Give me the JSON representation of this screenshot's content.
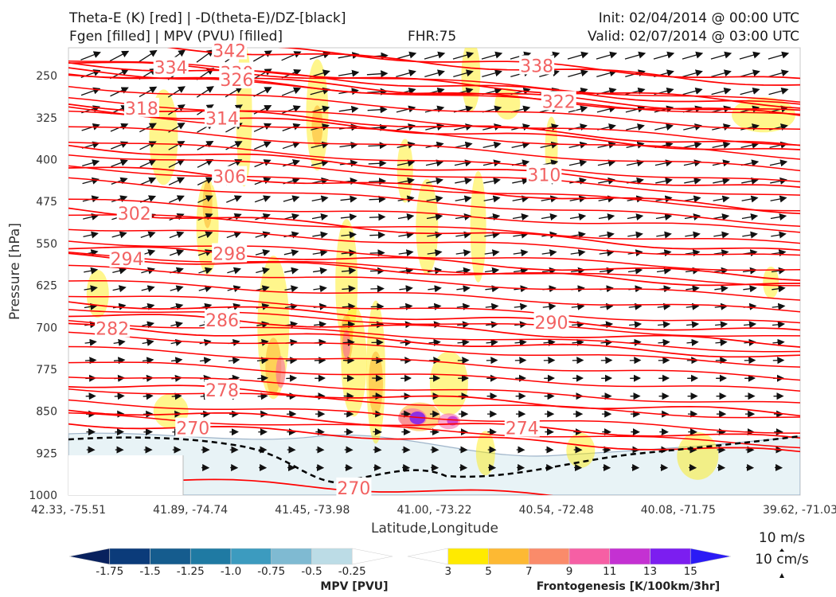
{
  "header": {
    "title_left_line1": "Theta-E (K) [red] | -D(theta-E)/DZ-[black]",
    "title_left_line2": "Fgen [filled] | MPV (PVU) [filled]",
    "fhr": "FHR:75",
    "init": "Init: 02/04/2014 @ 00:00 UTC",
    "valid": "Valid: 02/07/2014 @ 03:00 UTC"
  },
  "chart_data": {
    "type": "cross-section",
    "xlabel": "Latitude,Longitude",
    "ylabel": "Pressure [hPa]",
    "y_scale": "inverted",
    "ylim": [
      1000,
      200
    ],
    "x_tick_labels": [
      "42.33, -75.51",
      "41.89, -74.74",
      "41.45, -73.98",
      "41.00, -73.22",
      "40.54, -72.48",
      "40.08, -71.75",
      "39.62, -71.03"
    ],
    "y_ticks": [
      250,
      325,
      400,
      475,
      550,
      625,
      700,
      775,
      850,
      925,
      1000
    ],
    "theta_e_contours": {
      "color": "#ff0000",
      "labels": [
        {
          "value": "342",
          "x_frac": 0.22,
          "p": 205
        },
        {
          "value": "334",
          "x_frac": 0.14,
          "p": 235
        },
        {
          "value": "330",
          "x_frac": 0.23,
          "p": 245
        },
        {
          "value": "326",
          "x_frac": 0.23,
          "p": 257
        },
        {
          "value": "338",
          "x_frac": 0.64,
          "p": 232
        },
        {
          "value": "318",
          "x_frac": 0.1,
          "p": 308
        },
        {
          "value": "314",
          "x_frac": 0.21,
          "p": 326
        },
        {
          "value": "322",
          "x_frac": 0.67,
          "p": 296
        },
        {
          "value": "306",
          "x_frac": 0.22,
          "p": 430
        },
        {
          "value": "310",
          "x_frac": 0.65,
          "p": 427
        },
        {
          "value": "302",
          "x_frac": 0.09,
          "p": 496
        },
        {
          "value": "298",
          "x_frac": 0.22,
          "p": 568
        },
        {
          "value": "294",
          "x_frac": 0.08,
          "p": 577
        },
        {
          "value": "286",
          "x_frac": 0.21,
          "p": 687
        },
        {
          "value": "282",
          "x_frac": 0.06,
          "p": 702
        },
        {
          "value": "290",
          "x_frac": 0.66,
          "p": 691
        },
        {
          "value": "278",
          "x_frac": 0.21,
          "p": 812
        },
        {
          "value": "270",
          "x_frac": 0.17,
          "p": 880
        },
        {
          "value": "274",
          "x_frac": 0.62,
          "p": 880
        },
        {
          "value": "270",
          "x_frac": 0.39,
          "p": 987
        }
      ]
    },
    "mpv_colorbar": {
      "title": "MPV [PVU]",
      "ticks": [
        "-1.75",
        "-1.5",
        "-1.25",
        "-1.0",
        "-0.75",
        "-0.5",
        "-0.25"
      ],
      "colors": [
        "#08215e",
        "#0b3b7a",
        "#155c8e",
        "#1f7aa3",
        "#3c9bbf",
        "#7fbad2",
        "#bcdce6",
        "#ffffff"
      ]
    },
    "fgen_colorbar": {
      "title": "Frontogenesis [K/100km/3hr]",
      "ticks": [
        "3",
        "5",
        "7",
        "9",
        "11",
        "13",
        "15"
      ],
      "colors": [
        "#ffffff",
        "#ffea00",
        "#fdb933",
        "#fa8b6a",
        "#f65fa4",
        "#c431d2",
        "#7c1ef0",
        "#2b1bf5"
      ]
    },
    "vector_key": {
      "u_label": "10 m/s",
      "w_label": "10 cm/s"
    }
  }
}
